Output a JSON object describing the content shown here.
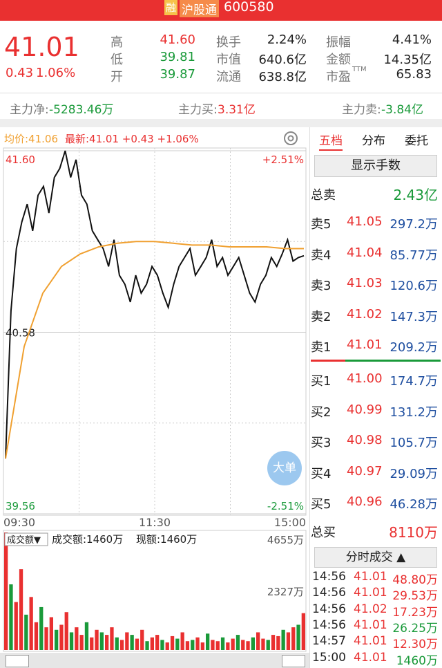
{
  "header": {
    "tag": "融",
    "exchange": "沪股通",
    "code": "600580"
  },
  "quote": {
    "price": "41.01",
    "change": "0.43",
    "change_pct": "1.06%",
    "cells": [
      {
        "label": "高",
        "value": "41.60"
      },
      {
        "label": "低",
        "value": "39.81"
      },
      {
        "label": "开",
        "value": "39.87"
      },
      {
        "label": "换手",
        "value": "2.24%"
      },
      {
        "label": "市值",
        "value": "640.6亿"
      },
      {
        "label": "流通",
        "value": "638.8亿"
      },
      {
        "label": "振幅",
        "value": "4.41%"
      },
      {
        "label": "金额",
        "value": "14.35亿"
      },
      {
        "label": "市盈",
        "sup": "TTM",
        "value": "65.83"
      }
    ]
  },
  "flow": [
    {
      "label": "主力净:",
      "value": "-5283.46万"
    },
    {
      "label": "主力买:",
      "value": "3.31亿"
    },
    {
      "label": "主力卖:",
      "value": "-3.84亿"
    }
  ],
  "chart_header": {
    "avg": "均价:41.06",
    "latest": "最新:41.01 +0.43 +1.06%"
  },
  "big_order": "大单",
  "chart_data": [
    {
      "type": "line",
      "series": [
        {
          "color": "#111111",
          "values": [
            39.87,
            40.7,
            41.05,
            41.2,
            41.3,
            41.15,
            41.35,
            41.4,
            41.25,
            41.45,
            41.5,
            41.6,
            41.45,
            41.55,
            41.35,
            41.3,
            41.15,
            41.1,
            41.05,
            40.95,
            41.1,
            40.9,
            40.85,
            40.75,
            40.9,
            40.8,
            40.85,
            40.95,
            40.9,
            40.8,
            40.72,
            40.85,
            40.95,
            41.0,
            41.05,
            40.9,
            40.95,
            41.0,
            41.1,
            40.95,
            41.0,
            40.9,
            40.95,
            41.0,
            40.9,
            40.8,
            40.75,
            40.85,
            40.9,
            41.0,
            40.95,
            41.02,
            41.1,
            40.98,
            41.0,
            41.01
          ]
        },
        {
          "color": "#f0a030",
          "values": [
            39.87,
            40.5,
            40.8,
            40.95,
            41.02,
            41.06,
            41.08,
            41.09,
            41.09,
            41.08,
            41.07,
            41.07,
            41.06,
            41.06,
            41.06,
            41.05,
            41.05
          ]
        }
      ],
      "ylim": [
        39.56,
        41.6
      ],
      "yticks": [
        {
          "value": 41.6,
          "label": "41.60"
        },
        {
          "value": 40.58,
          "label": "40.58"
        },
        {
          "value": 39.56,
          "label": "39.56"
        }
      ],
      "y2lim": [
        -2.51,
        2.51
      ],
      "y2ticks": [
        {
          "value": 2.51,
          "label": "+2.51%"
        },
        {
          "value": -2.51,
          "label": "-2.51%"
        }
      ],
      "xticks": [
        "09:30",
        "11:30",
        "15:00"
      ]
    },
    {
      "type": "bar",
      "title": "成交额▼",
      "subtitle": "成交额:1460万",
      "note": "现额:1460万",
      "up_color": "#e93030",
      "down_color": "#1a9a3a",
      "values": [
        4655,
        2600,
        1900,
        3200,
        1400,
        2100,
        1100,
        1700,
        900,
        1300,
        800,
        1000,
        1500,
        700,
        900,
        600,
        1100,
        500,
        800,
        700,
        600,
        900,
        500,
        400,
        700,
        600,
        450,
        800,
        350,
        500,
        600,
        400,
        300,
        550,
        450,
        700,
        350,
        400,
        500,
        300,
        650,
        400,
        350,
        500,
        300,
        450,
        600,
        400,
        350,
        500,
        700,
        450,
        400,
        600,
        550,
        800,
        700,
        900,
        1000,
        1460
      ],
      "ylim": [
        0,
        4655
      ],
      "yticks": [
        {
          "value": 4655,
          "label": "4655万"
        },
        {
          "value": 2327,
          "label": "2327万"
        }
      ]
    }
  ],
  "panel": {
    "tabs": [
      "五档",
      "分布",
      "委托"
    ],
    "button": "显示手数",
    "total_sell": {
      "label": "总卖",
      "value": "2.43亿"
    },
    "sells": [
      {
        "label": "卖5",
        "price": "41.05",
        "volume": "297.2万"
      },
      {
        "label": "卖4",
        "price": "41.04",
        "volume": "85.77万"
      },
      {
        "label": "卖3",
        "price": "41.03",
        "volume": "120.6万"
      },
      {
        "label": "卖2",
        "price": "41.02",
        "volume": "147.3万"
      },
      {
        "label": "卖1",
        "price": "41.01",
        "volume": "209.2万"
      }
    ],
    "buys": [
      {
        "label": "买1",
        "price": "41.00",
        "volume": "174.7万"
      },
      {
        "label": "买2",
        "price": "40.99",
        "volume": "131.2万"
      },
      {
        "label": "买3",
        "price": "40.98",
        "volume": "105.7万"
      },
      {
        "label": "买4",
        "price": "40.97",
        "volume": "29.09万"
      },
      {
        "label": "买5",
        "price": "40.96",
        "volume": "46.28万"
      }
    ],
    "total_buy": {
      "label": "总买",
      "value": "8110万"
    },
    "trades_button": "分时成交 ▲",
    "trades": [
      {
        "time": "14:56",
        "price": "41.01",
        "volume": "48.80万",
        "side": "buy"
      },
      {
        "time": "14:56",
        "price": "41.01",
        "volume": "29.53万",
        "side": "buy"
      },
      {
        "time": "14:56",
        "price": "41.02",
        "volume": "17.23万",
        "side": "buy"
      },
      {
        "time": "14:56",
        "price": "41.01",
        "volume": "26.25万",
        "side": "sell"
      },
      {
        "time": "14:57",
        "price": "41.01",
        "volume": "12.30万",
        "side": "buy"
      },
      {
        "time": "15:00",
        "price": "41.01",
        "volume": "1460万",
        "side": "sell"
      }
    ]
  }
}
